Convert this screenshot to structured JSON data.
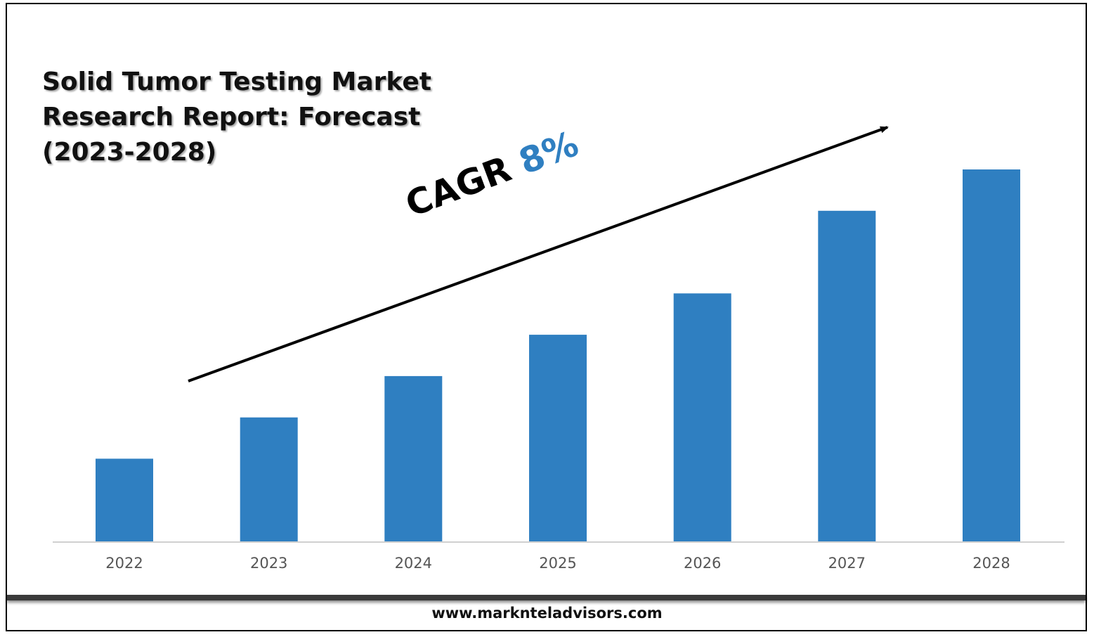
{
  "title": "Solid Tumor Testing Market Research Report: Forecast (2023-2028)",
  "cagr": {
    "label": "CAGR",
    "value": "8%"
  },
  "footer": {
    "website": "www.marknteladvisors.com"
  },
  "colors": {
    "bar": "#2f7fc1",
    "cagr_value": "#2f7fc1",
    "axis": "#d0d0d0",
    "footer_bar": "#3a3a3a"
  },
  "chart_data": {
    "type": "bar",
    "categories": [
      "2022",
      "2023",
      "2024",
      "2025",
      "2026",
      "2027",
      "2028"
    ],
    "values": [
      1,
      1.5,
      2,
      2.5,
      3,
      4,
      4.5
    ],
    "ylim": [
      0,
      4.5
    ],
    "grid": false,
    "annotations": [
      {
        "text": "CAGR 8%",
        "type": "trend-arrow"
      }
    ]
  }
}
